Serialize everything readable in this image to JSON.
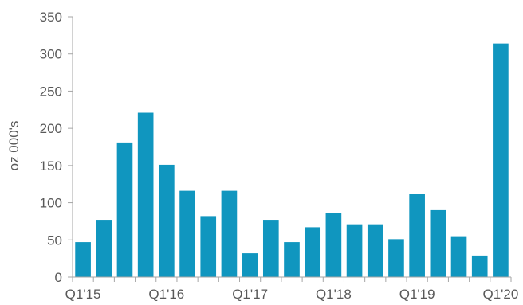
{
  "chart_data": {
    "type": "bar",
    "ylabel": "oz 000's",
    "xlabel": "",
    "ylim": [
      0,
      350
    ],
    "yticks": [
      0,
      50,
      100,
      150,
      200,
      250,
      300,
      350
    ],
    "grid": false,
    "bar_color": "#1096bf",
    "axis_color": "#a6a6a6",
    "categories": [
      "Q1'15",
      "Q2'15",
      "Q3'15",
      "Q4'15",
      "Q1'16",
      "Q2'16",
      "Q3'16",
      "Q4'16",
      "Q1'17",
      "Q2'17",
      "Q3'17",
      "Q4'17",
      "Q1'18",
      "Q2'18",
      "Q3'18",
      "Q4'18",
      "Q1'19",
      "Q2'19",
      "Q3'19",
      "Q4'19",
      "Q1'20"
    ],
    "values": [
      47,
      77,
      181,
      221,
      151,
      116,
      82,
      116,
      32,
      77,
      47,
      67,
      86,
      71,
      71,
      51,
      112,
      90,
      55,
      29,
      314
    ],
    "x_tick_labels": [
      "Q1'15",
      "Q1'16",
      "Q1'17",
      "Q1'18",
      "Q1'19",
      "Q1'20"
    ],
    "x_tick_positions": [
      0,
      4,
      8,
      12,
      16,
      20
    ]
  }
}
